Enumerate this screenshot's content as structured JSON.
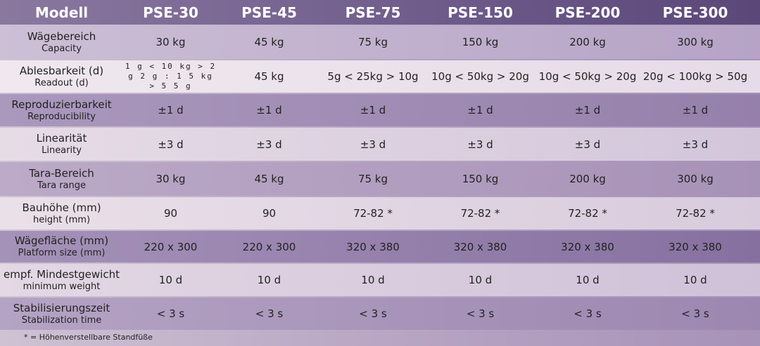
{
  "table": {
    "header": [
      "Modell",
      "PSE-30",
      "PSE-45",
      "PSE-75",
      "PSE-150",
      "PSE-200",
      "PSE-300"
    ],
    "rows": [
      {
        "label": "Wägebereich",
        "sublabel": "Capacity",
        "cells": [
          "30 kg",
          "45 kg",
          "75 kg",
          "150 kg",
          "200 kg",
          "300 kg"
        ]
      },
      {
        "label": "Ablesbarkeit (d)",
        "sublabel": "Readout (d)",
        "cells": [
          "1 g < 10 kg > 2 g 2 g : 1 5 kg > 5 5 g",
          "45 kg",
          "5g < 25kg > 10g",
          "10g < 50kg > 20g",
          "10g < 50kg > 20g",
          "20g < 100kg > 50g"
        ]
      },
      {
        "label": "Reproduzierbarkeit",
        "sublabel": "Reproducibility",
        "cells": [
          "±1 d",
          "±1 d",
          "±1 d",
          "±1 d",
          "±1 d",
          "±1 d"
        ]
      },
      {
        "label": "Linearität",
        "sublabel": "Linearity",
        "cells": [
          "±3 d",
          "±3 d",
          "±3 d",
          "±3 d",
          "±3 d",
          "±3 d"
        ]
      },
      {
        "label": "Tara-Bereich",
        "sublabel": "Tara range",
        "cells": [
          "30 kg",
          "45 kg",
          "75 kg",
          "150 kg",
          "200 kg",
          "300 kg"
        ]
      },
      {
        "label": "Bauhöhe (mm)",
        "sublabel": "height (mm)",
        "cells": [
          "90",
          "90",
          "72-82 *",
          "72-82 *",
          "72-82 *",
          "72-82 *"
        ]
      },
      {
        "label": "Wägefläche (mm)",
        "sublabel": "Platform size (mm)",
        "cells": [
          "220 x 300",
          "220 x 300",
          "320 x 380",
          "320 x 380",
          "320 x 380",
          "320 x 380"
        ]
      },
      {
        "label": "empf. Mindestgewicht",
        "sublabel": "minimum weight",
        "cells": [
          "10 d",
          "10 d",
          "10 d",
          "10 d",
          "10 d",
          "10 d"
        ]
      },
      {
        "label": "Stabilisierungszeit",
        "sublabel": "Stabilization time",
        "cells": [
          "< 3 s",
          "< 3 s",
          "< 3 s",
          "< 3 s",
          "< 3 s",
          "< 3 s"
        ]
      }
    ],
    "footnote": "* = Höhenverstellbare Standfüße"
  }
}
